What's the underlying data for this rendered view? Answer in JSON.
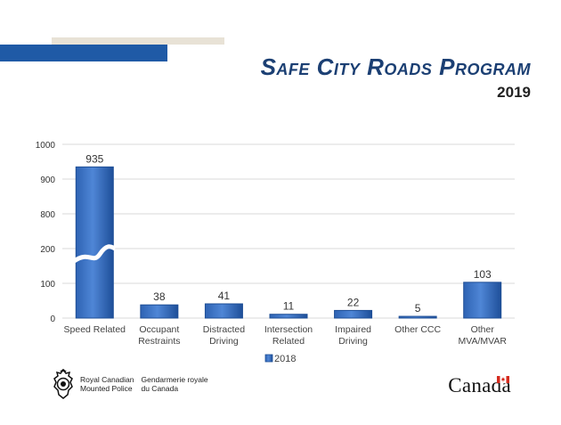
{
  "header": {
    "title": "Safe City Roads Program",
    "year": "2019"
  },
  "chart_data": {
    "type": "bar",
    "categories": [
      "Speed Related",
      "Occupant Restraints",
      "Distracted Driving",
      "Intersection Related",
      "Impaired Driving",
      "Other CCC",
      "Other MVA/MVAR"
    ],
    "category_lines": [
      [
        "Speed Related"
      ],
      [
        "Occupant",
        "Restraints"
      ],
      [
        "Distracted",
        "Driving"
      ],
      [
        "Intersection",
        "Related"
      ],
      [
        "Impaired",
        "Driving"
      ],
      [
        "Other CCC"
      ],
      [
        "Other",
        "MVA/MVAR"
      ]
    ],
    "series": [
      {
        "name": "2018",
        "values": [
          935,
          38,
          41,
          11,
          22,
          5,
          103
        ]
      }
    ],
    "data_labels": [
      "935",
      "38",
      "41",
      "11",
      "22",
      "5",
      "103"
    ],
    "y_ticks": [
      "0",
      "100",
      "200",
      "800",
      "900",
      "1000"
    ],
    "axis_break": {
      "from": 200,
      "to": 800
    },
    "grid": true,
    "legend": "bottom",
    "colors": {
      "bar": "#3b72c2",
      "bar_dark": "#1f4f96",
      "grid": "#d9d9d9"
    }
  },
  "footer": {
    "rcmp_en_line1": "Royal Canadian",
    "rcmp_en_line2": "Mounted Police",
    "rcmp_fr_line1": "Gendarmerie royale",
    "rcmp_fr_line2": "du Canada",
    "wordmark": "Canada",
    "crest_icon": "rcmp-crest-icon",
    "flag_icon": "maple-leaf-flag-icon"
  }
}
